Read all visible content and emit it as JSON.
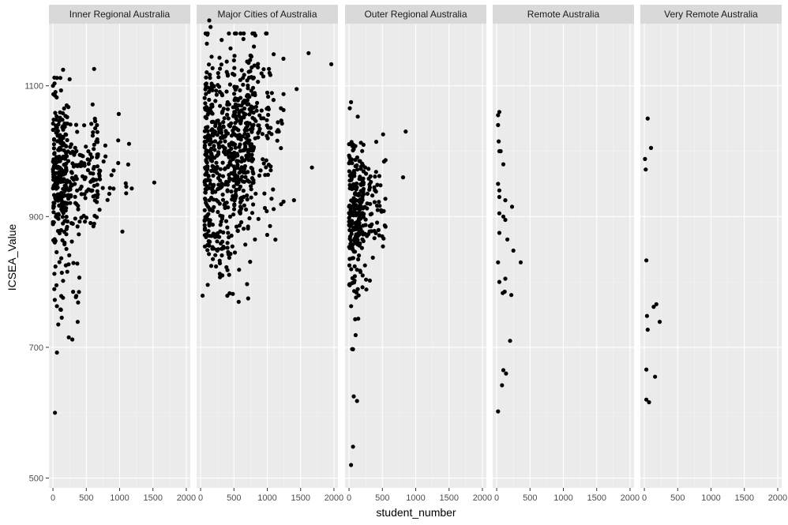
{
  "chart_data": {
    "type": "scatter",
    "title": "",
    "xlabel": "student_number",
    "ylabel": "ICSEA_Value",
    "xlim": [
      -60,
      2060
    ],
    "ylim": [
      485,
      1195
    ],
    "x_ticks": [
      0,
      500,
      1000,
      1500,
      2000
    ],
    "x_tick_labels": [
      "0",
      "500",
      "1000",
      "1500",
      "2000"
    ],
    "y_ticks": [
      500,
      700,
      900,
      1100
    ],
    "y_tick_labels": [
      "500",
      "700",
      "900",
      "1100"
    ],
    "grid": true,
    "legend": "none",
    "colors": {
      "panel_bg": "#ebebeb",
      "strip_bg": "#d9d9d9",
      "grid_major": "#ffffff",
      "grid_minor": "#f5f5f5",
      "point": "#000000"
    },
    "facets": [
      {
        "label": "Inner Regional Australia",
        "seed": 11,
        "clusters": [
          {
            "n": 210,
            "xmin": 0,
            "xmax": 220,
            "ymean": 965,
            "ysd": 55
          },
          {
            "n": 150,
            "xmin": 150,
            "xmax": 700,
            "ymean": 960,
            "ysd": 48
          },
          {
            "n": 35,
            "xmin": 600,
            "xmax": 1200,
            "ymean": 965,
            "ysd": 40
          },
          {
            "n": 28,
            "xmin": 20,
            "xmax": 420,
            "ymean": 790,
            "ysd": 40
          }
        ],
        "extra": [
          [
            30,
            600
          ],
          [
            60,
            692
          ],
          [
            1520,
            952
          ],
          [
            80,
            735
          ],
          [
            290,
            712
          ],
          [
            250,
            1110
          ],
          [
            60,
            1112
          ],
          [
            110,
            1112
          ]
        ]
      },
      {
        "label": "Major Cities of Australia",
        "seed": 23,
        "clusters": [
          {
            "n": 520,
            "xmin": 60,
            "xmax": 800,
            "ymean": 990,
            "ysd": 75
          },
          {
            "n": 180,
            "xmin": 500,
            "xmax": 1250,
            "ymean": 1025,
            "ysd": 70
          },
          {
            "n": 45,
            "xmin": 100,
            "xmax": 450,
            "ymean": 845,
            "ysd": 22
          }
        ],
        "extra": [
          [
            30,
            779
          ],
          [
            800,
            1160
          ],
          [
            720,
            1135
          ],
          [
            1960,
            1133
          ],
          [
            1620,
            1150
          ],
          [
            1670,
            975
          ],
          [
            1400,
            925
          ],
          [
            1440,
            1095
          ],
          [
            150,
            1190
          ],
          [
            130,
            1200
          ]
        ]
      },
      {
        "label": "Outer Regional Australia",
        "seed": 37,
        "clusters": [
          {
            "n": 190,
            "xmin": 0,
            "xmax": 220,
            "ymean": 920,
            "ysd": 52
          },
          {
            "n": 80,
            "xmin": 150,
            "xmax": 550,
            "ymean": 915,
            "ysd": 42
          },
          {
            "n": 25,
            "xmin": 0,
            "xmax": 260,
            "ymean": 800,
            "ysd": 42
          }
        ],
        "extra": [
          [
            60,
            548
          ],
          [
            30,
            520
          ],
          [
            70,
            625
          ],
          [
            120,
            618
          ],
          [
            850,
            1030
          ],
          [
            810,
            960
          ],
          [
            30,
            1075
          ],
          [
            60,
            697
          ]
        ]
      },
      {
        "label": "Remote Australia",
        "seed": 53,
        "clusters": [],
        "extra": [
          [
            20,
            1055
          ],
          [
            40,
            1060
          ],
          [
            20,
            1040
          ],
          [
            30,
            1015
          ],
          [
            40,
            1000
          ],
          [
            60,
            1000
          ],
          [
            100,
            980
          ],
          [
            20,
            950
          ],
          [
            40,
            940
          ],
          [
            40,
            930
          ],
          [
            130,
            925
          ],
          [
            230,
            915
          ],
          [
            40,
            905
          ],
          [
            100,
            900
          ],
          [
            130,
            895
          ],
          [
            40,
            875
          ],
          [
            160,
            865
          ],
          [
            250,
            848
          ],
          [
            20,
            830
          ],
          [
            360,
            830
          ],
          [
            40,
            800
          ],
          [
            130,
            805
          ],
          [
            120,
            785
          ],
          [
            90,
            783
          ],
          [
            220,
            780
          ],
          [
            200,
            710
          ],
          [
            100,
            665
          ],
          [
            140,
            660
          ],
          [
            80,
            642
          ],
          [
            20,
            602
          ]
        ]
      },
      {
        "label": "Very Remote Australia",
        "seed": 71,
        "clusters": [],
        "extra": [
          [
            50,
            1050
          ],
          [
            100,
            1005
          ],
          [
            10,
            988
          ],
          [
            20,
            972
          ],
          [
            30,
            833
          ],
          [
            140,
            762
          ],
          [
            180,
            766
          ],
          [
            230,
            739
          ],
          [
            40,
            748
          ],
          [
            50,
            727
          ],
          [
            30,
            666
          ],
          [
            160,
            655
          ],
          [
            30,
            620
          ],
          [
            70,
            616
          ]
        ]
      }
    ]
  }
}
